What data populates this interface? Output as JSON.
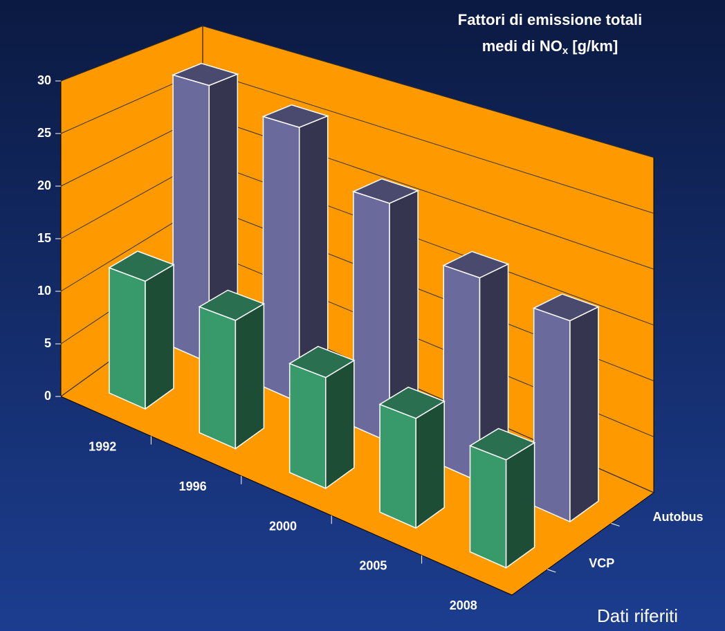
{
  "chart_data": {
    "type": "bar3d",
    "title": {
      "line1": "Fattori di emissione totali",
      "line2": "medi di NO",
      "subscript": "x",
      "line2_end": " [g/km]"
    },
    "categories": [
      "1992",
      "1996",
      "2000",
      "2005",
      "2008"
    ],
    "series": [
      {
        "name": "Autobus",
        "color": "#6a6a9c",
        "side_color": "#35354f",
        "top_color": "#4a4a6e",
        "values": [
          28,
          26.5,
          22,
          18,
          17
        ]
      },
      {
        "name": "VCP",
        "color": "#38996a",
        "side_color": "#1e4d36",
        "top_color": "#2a7050",
        "values": [
          12,
          11.5,
          9.5,
          9,
          8.5
        ]
      }
    ],
    "ylim": [
      0,
      30
    ],
    "yticks": [
      0,
      5,
      10,
      15,
      20,
      25,
      30
    ],
    "grid": true,
    "wall_color": "#ff9900",
    "footnote": "Dati riferiti"
  }
}
